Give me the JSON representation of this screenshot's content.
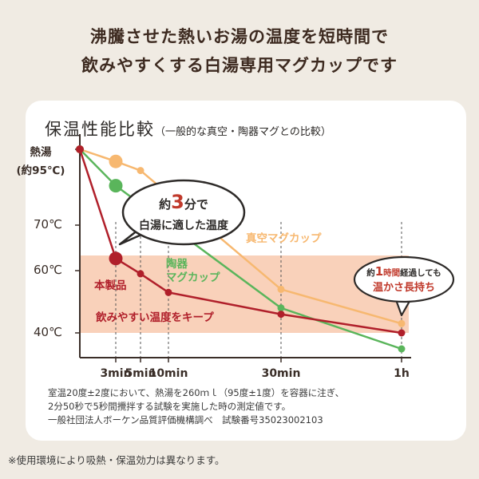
{
  "headline": {
    "line1": "沸騰させた熱いお湯の温度を短時間で",
    "line2": "飲みやすくする白湯専用マグカップです"
  },
  "chart_title": {
    "main": "保温性能比較",
    "sub": "（一般的な真空・陶器マグとの比較）"
  },
  "chart_data": {
    "type": "line",
    "x_unit": "min",
    "x_ticks": [
      {
        "value": 3,
        "label": "3min"
      },
      {
        "value": 5,
        "label": "5min"
      },
      {
        "value": 10,
        "label": "10min"
      },
      {
        "value": 30,
        "label": "30min"
      },
      {
        "value": 60,
        "label": "1h"
      }
    ],
    "y_unit": "℃",
    "y_ticks": [
      {
        "value": 95,
        "label": "熱湯\n(約95℃)"
      },
      {
        "value": 70,
        "label": "70℃"
      },
      {
        "value": 60,
        "label": "60℃"
      },
      {
        "value": 40,
        "label": "40℃"
      }
    ],
    "ylim": [
      36,
      97
    ],
    "highlight_band": {
      "from": 40,
      "to": 65,
      "label": "飲みやすい温度をキープ",
      "color": "#f8c9ae"
    },
    "series": [
      {
        "name": "真空マグカップ",
        "color": "#f7b870",
        "x": [
          0,
          3,
          5,
          30,
          60
        ],
        "y": [
          95,
          91,
          88,
          54,
          43
        ],
        "big_point_index": 1
      },
      {
        "name": "陶器\nマグカップ",
        "color": "#5ab55b",
        "x": [
          0,
          3,
          30,
          60
        ],
        "y": [
          95,
          83,
          48,
          36
        ],
        "big_point_index": 1
      },
      {
        "name": "本製品",
        "color": "#b01f2a",
        "x": [
          0,
          3,
          5,
          10,
          30,
          60
        ],
        "y": [
          95,
          64,
          59,
          53,
          46,
          40
        ],
        "big_point_index": 1
      }
    ]
  },
  "callouts": {
    "three_min": {
      "pre": "約",
      "num": "3",
      "post": "分で",
      "line2": "白湯に適した温度"
    },
    "one_hour": {
      "pre": "約",
      "num": "1",
      "mid": "時間",
      "post": "経過しても",
      "line2": "温かさ長持ち"
    }
  },
  "notes": {
    "line1": "室温20度±2度において、熱湯を260ｍｌ（95度±1度）を容器に注ぎ、",
    "line2": "2分50秒で5秒間攪拌する試験を実施した時の測定値です。",
    "line3": "一般社団法人ボーケン品質評価機構調べ　試験番号35023002103"
  },
  "footnote": "※使用環境により吸熱・保温効力は異なります。"
}
